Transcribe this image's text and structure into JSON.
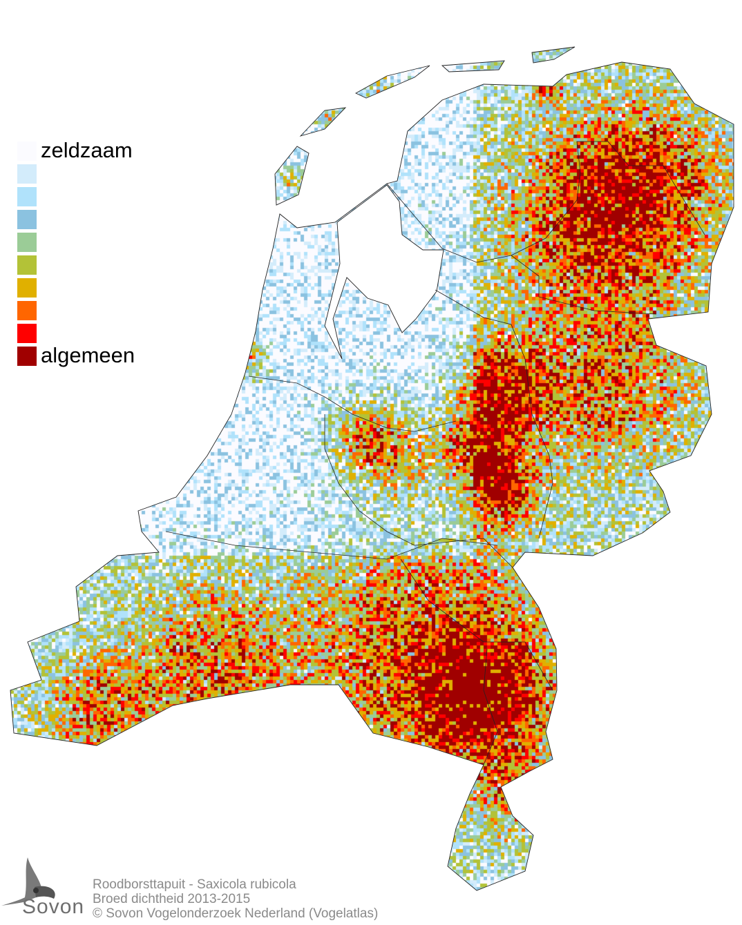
{
  "legend": {
    "levels": [
      {
        "color": "#fbfbff",
        "label": "zeldzaam"
      },
      {
        "color": "#d3ecfb",
        "label": ""
      },
      {
        "color": "#b0e2fb",
        "label": ""
      },
      {
        "color": "#8bc2e0",
        "label": ""
      },
      {
        "color": "#9bcc97",
        "label": ""
      },
      {
        "color": "#b3c237",
        "label": ""
      },
      {
        "color": "#e0b000",
        "label": ""
      },
      {
        "color": "#ff6600",
        "label": ""
      },
      {
        "color": "#ff0000",
        "label": ""
      },
      {
        "color": "#a00000",
        "label": "algemeen"
      }
    ]
  },
  "footer": {
    "species": "Roodborsttapuit - Saxicola rubicola",
    "subtitle": "Broed dichtheid 2013-2015",
    "copyright": "© Sovon Vogelonderzoek Nederland (Vogelatlas)"
  },
  "logo": {
    "text": "Sovon"
  }
}
